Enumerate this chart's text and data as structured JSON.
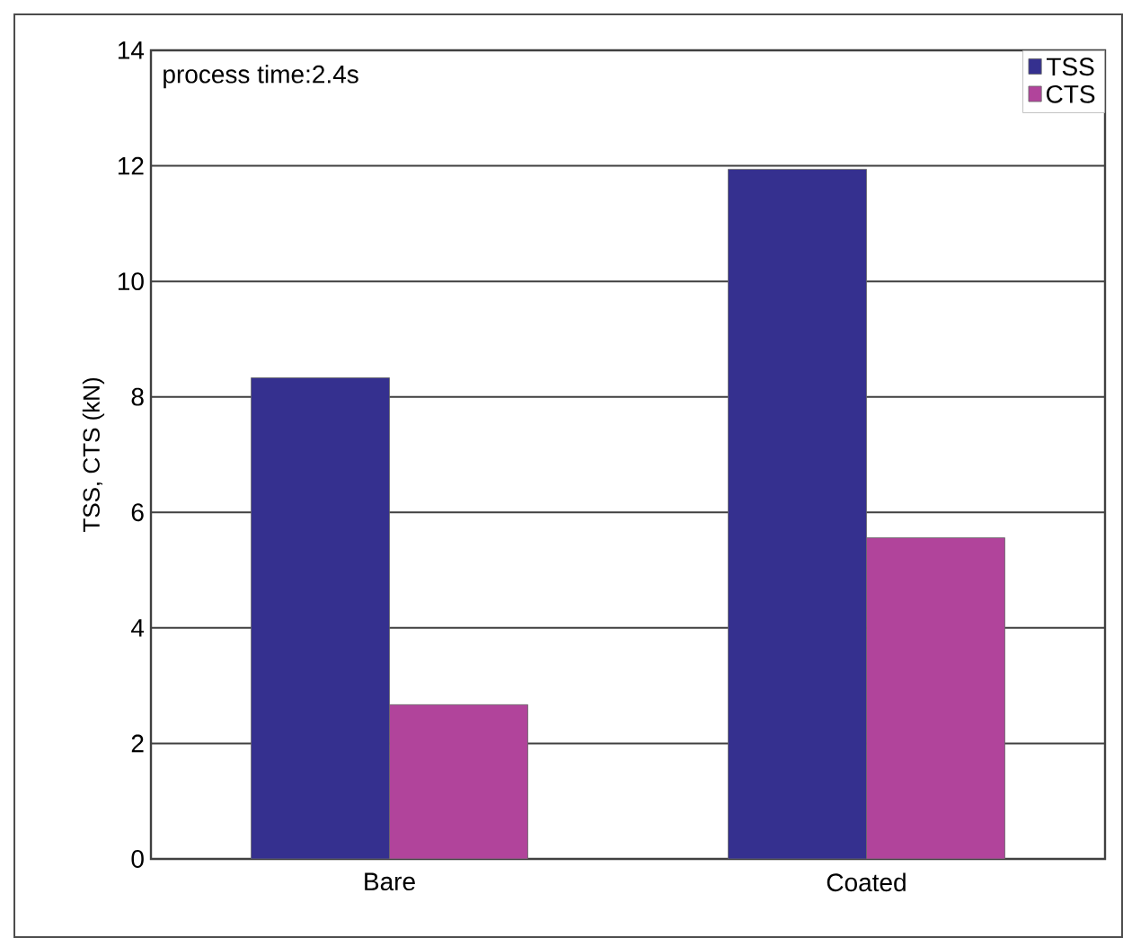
{
  "chart_data": {
    "type": "bar",
    "ylabel": "TSS, CTS (kN)",
    "categories": [
      "Bare",
      "Coated"
    ],
    "series": [
      {
        "name": "TSS",
        "color": "#35308f",
        "values": [
          8.33,
          11.94
        ]
      },
      {
        "name": "CTS",
        "color": "#b1449b",
        "values": [
          2.67,
          5.56
        ]
      }
    ],
    "ylim": [
      0,
      14
    ],
    "yticks": [
      0,
      2,
      4,
      6,
      8,
      10,
      12,
      14
    ],
    "grid": "y",
    "legend": "top right",
    "annotations": [
      "process time:2.4s"
    ]
  }
}
